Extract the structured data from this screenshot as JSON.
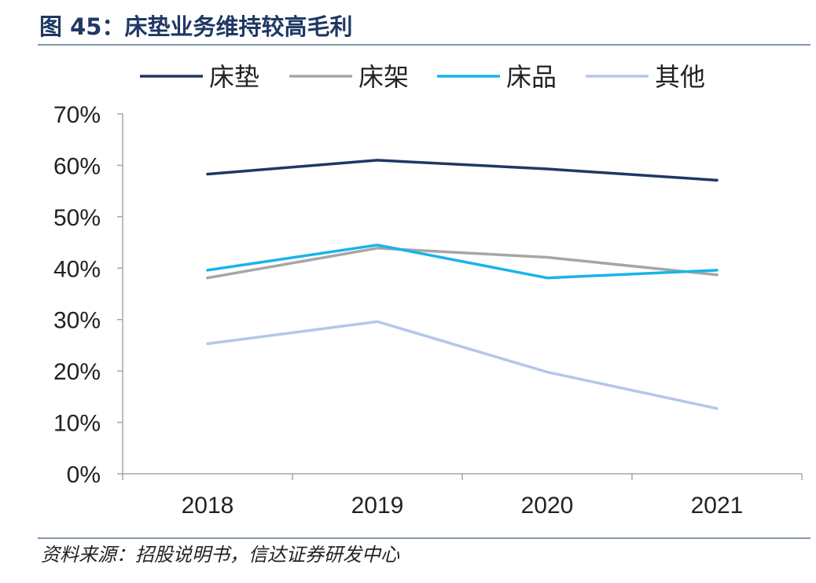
{
  "title": "图 45：床垫业务维持较高毛利",
  "source": "资料来源：招股说明书，信达证券研发中心",
  "chart_data": {
    "type": "line",
    "title": "床垫业务维持较高毛利",
    "categories": [
      "2018",
      "2019",
      "2020",
      "2021"
    ],
    "xlabel": "",
    "ylabel": "",
    "ylim": [
      0,
      70
    ],
    "yticks": [
      0,
      10,
      20,
      30,
      40,
      50,
      60,
      70
    ],
    "ytick_labels": [
      "0%",
      "10%",
      "20%",
      "30%",
      "40%",
      "50%",
      "60%",
      "70%"
    ],
    "grid": false,
    "legend_position": "top",
    "series": [
      {
        "name": "床垫",
        "color": "#1f3864",
        "values": [
          58.3,
          61.0,
          59.3,
          57.1
        ]
      },
      {
        "name": "床架",
        "color": "#a6a6a6",
        "values": [
          38.1,
          43.9,
          42.1,
          38.7
        ]
      },
      {
        "name": "床品",
        "color": "#18b4e8",
        "values": [
          39.6,
          44.5,
          38.1,
          39.6
        ]
      },
      {
        "name": "其他",
        "color": "#b4c7e7",
        "values": [
          25.3,
          29.6,
          19.8,
          12.7
        ]
      }
    ]
  }
}
